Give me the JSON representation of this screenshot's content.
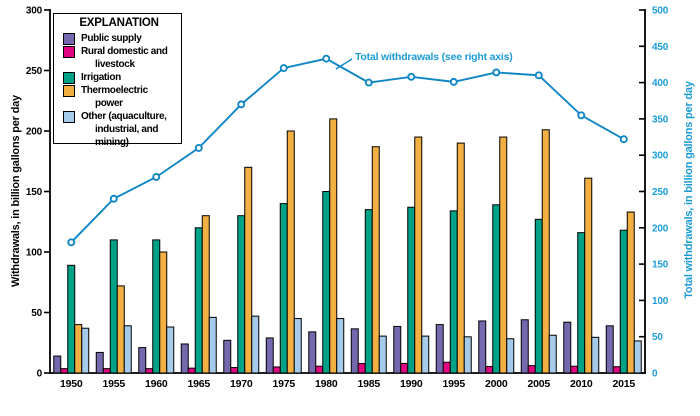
{
  "figure": {
    "annotation": "Total withdrawals (see right axis)"
  },
  "legend": {
    "title": "EXPLANATION",
    "items": [
      {
        "label": "Public supply",
        "color": "#7569ad"
      },
      {
        "label": "Rural domestic and\nlivestock",
        "color": "#e00682"
      },
      {
        "label": "Irrigation",
        "color": "#00a287"
      },
      {
        "label": "Thermoelectric power",
        "color": "#f3b042"
      },
      {
        "label": "Other (aquaculture,\nindustrial, and\nmining)",
        "color": "#a6cae9"
      }
    ]
  },
  "chart_data": {
    "type": "bar+line",
    "title": "",
    "categories": [
      "1950",
      "1955",
      "1960",
      "1965",
      "1970",
      "1975",
      "1980",
      "1985",
      "1990",
      "1995",
      "2000",
      "2005",
      "2010",
      "2015"
    ],
    "series": [
      {
        "name": "Public supply",
        "color": "#7569ad",
        "axis": "left",
        "values": [
          14,
          17,
          21,
          24,
          27,
          29,
          34,
          36.5,
          38.5,
          40,
          43,
          44,
          42,
          39
        ]
      },
      {
        "name": "Rural domestic and livestock",
        "color": "#e00682",
        "axis": "left",
        "values": [
          3.6,
          3.6,
          3.6,
          4,
          4.5,
          5,
          5.6,
          7.8,
          7.9,
          8.9,
          5.4,
          6.1,
          5.6,
          5.2
        ]
      },
      {
        "name": "Irrigation",
        "color": "#00a287",
        "axis": "left",
        "values": [
          89,
          110,
          110,
          120,
          130,
          140,
          150,
          135,
          137,
          134,
          139,
          127,
          116,
          118
        ]
      },
      {
        "name": "Thermoelectric power",
        "color": "#f3b042",
        "axis": "left",
        "values": [
          40,
          72,
          100,
          130,
          170,
          200,
          210,
          187,
          195,
          190,
          195,
          201,
          161,
          133
        ]
      },
      {
        "name": "Other (aquaculture, industrial, and mining)",
        "color": "#a6cae9",
        "axis": "left",
        "values": [
          37,
          39,
          38,
          46,
          47,
          45,
          45,
          30.5,
          30.5,
          29.9,
          28.3,
          31.2,
          29.5,
          26.5
        ]
      }
    ],
    "line_series": {
      "name": "Total withdrawals (see right axis)",
      "color": "#0e86c6",
      "axis": "right",
      "values": [
        180,
        240,
        270,
        310,
        370,
        420,
        433,
        400,
        408,
        401,
        414,
        410,
        355,
        322
      ]
    },
    "left_axis": {
      "label": "Withdrawals, in billion gallons per day",
      "min": 0,
      "max": 300,
      "ticks": [
        0,
        50,
        100,
        150,
        200,
        250,
        300
      ]
    },
    "right_axis": {
      "label": "Total withdrawals, in billion gallons per day",
      "min": 0,
      "max": 500,
      "ticks": [
        0,
        50,
        100,
        150,
        200,
        250,
        300,
        350,
        400,
        450,
        500
      ],
      "color": "#1a9cd8"
    },
    "grid": false,
    "legend_position": "top-left-inside"
  }
}
